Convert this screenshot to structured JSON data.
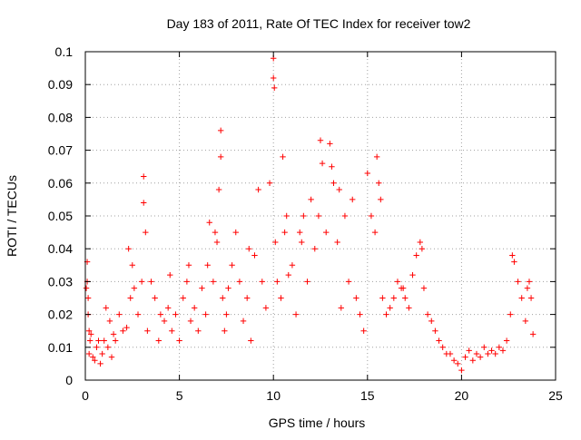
{
  "chart_data": {
    "type": "scatter",
    "title": "Day 183 of 2011, Rate Of TEC Index for receiver tow2",
    "xlabel": "GPS time / hours",
    "ylabel": "ROTI / TECUs",
    "xlim": [
      0,
      25
    ],
    "ylim": [
      0,
      0.1
    ],
    "x_ticks": [
      0,
      5,
      10,
      15,
      20,
      25
    ],
    "y_ticks": [
      0,
      0.01,
      0.02,
      0.03,
      0.04,
      0.05,
      0.06,
      0.07,
      0.08,
      0.09,
      0.1
    ],
    "x_tick_labels": [
      "0",
      "5",
      "10",
      "15",
      "20",
      "25"
    ],
    "y_tick_labels": [
      "0",
      "0.01",
      "0.02",
      "0.03",
      "0.04",
      "0.05",
      "0.06",
      "0.07",
      "0.08",
      "0.09",
      "0.1"
    ],
    "grid": true,
    "marker": "+",
    "color": "#ff0000",
    "series": [
      {
        "name": "ROTI",
        "x": [
          0.05,
          0.1,
          0.15,
          0.2,
          0.25,
          0.1,
          0.15,
          0.2,
          0.3,
          0.4,
          0.5,
          0.6,
          0.7,
          0.8,
          0.9,
          1.0,
          1.1,
          1.2,
          1.3,
          1.4,
          1.5,
          1.6,
          1.8,
          2.0,
          2.2,
          2.4,
          2.5,
          2.6,
          2.8,
          3.0,
          3.1,
          3.1,
          3.2,
          3.3,
          3.5,
          3.7,
          3.9,
          4.0,
          4.2,
          4.4,
          4.6,
          4.8,
          5.0,
          5.2,
          5.4,
          5.5,
          5.6,
          5.8,
          6.0,
          6.2,
          6.4,
          6.5,
          6.6,
          6.8,
          7.0,
          7.1,
          7.2,
          7.2,
          7.3,
          7.4,
          7.5,
          7.6,
          7.8,
          8.0,
          8.2,
          8.4,
          8.6,
          8.8,
          9.0,
          9.2,
          9.4,
          9.6,
          9.8,
          10.0,
          10.0,
          10.05,
          10.1,
          10.2,
          10.4,
          10.5,
          10.6,
          10.7,
          10.8,
          11.0,
          11.2,
          11.4,
          11.6,
          11.8,
          12.0,
          12.2,
          12.4,
          12.5,
          12.6,
          12.8,
          13.0,
          13.1,
          13.2,
          13.4,
          13.6,
          13.8,
          14.0,
          14.2,
          14.4,
          14.6,
          14.8,
          15.0,
          15.2,
          15.4,
          15.5,
          15.6,
          15.7,
          15.8,
          16.0,
          16.2,
          16.4,
          16.6,
          16.8,
          17.0,
          17.2,
          17.4,
          17.6,
          17.8,
          17.9,
          18.0,
          18.2,
          18.4,
          18.6,
          18.8,
          19.0,
          19.2,
          19.4,
          19.6,
          19.8,
          20.0,
          20.2,
          20.4,
          20.6,
          20.8,
          21.0,
          21.2,
          21.4,
          21.6,
          21.8,
          22.0,
          22.2,
          22.4,
          22.6,
          22.7,
          22.8,
          23.0,
          23.2,
          23.4,
          23.5,
          23.6,
          23.7,
          23.8,
          2.3,
          4.5,
          6.9,
          8.7,
          11.5,
          13.5,
          16.9
        ],
        "y": [
          0.028,
          0.03,
          0.025,
          0.015,
          0.012,
          0.036,
          0.02,
          0.008,
          0.014,
          0.007,
          0.006,
          0.01,
          0.012,
          0.005,
          0.008,
          0.012,
          0.022,
          0.01,
          0.018,
          0.007,
          0.014,
          0.012,
          0.02,
          0.015,
          0.016,
          0.025,
          0.035,
          0.028,
          0.02,
          0.03,
          0.062,
          0.054,
          0.045,
          0.015,
          0.03,
          0.025,
          0.012,
          0.02,
          0.018,
          0.022,
          0.015,
          0.02,
          0.012,
          0.025,
          0.03,
          0.035,
          0.018,
          0.022,
          0.015,
          0.028,
          0.02,
          0.035,
          0.048,
          0.03,
          0.042,
          0.058,
          0.076,
          0.068,
          0.025,
          0.015,
          0.02,
          0.028,
          0.035,
          0.045,
          0.03,
          0.018,
          0.025,
          0.012,
          0.038,
          0.058,
          0.03,
          0.022,
          0.06,
          0.098,
          0.092,
          0.089,
          0.042,
          0.03,
          0.025,
          0.068,
          0.045,
          0.05,
          0.032,
          0.035,
          0.02,
          0.045,
          0.05,
          0.03,
          0.055,
          0.04,
          0.05,
          0.073,
          0.066,
          0.045,
          0.072,
          0.065,
          0.06,
          0.042,
          0.022,
          0.05,
          0.03,
          0.055,
          0.025,
          0.02,
          0.015,
          0.063,
          0.05,
          0.045,
          0.068,
          0.06,
          0.055,
          0.025,
          0.02,
          0.022,
          0.025,
          0.03,
          0.028,
          0.025,
          0.022,
          0.032,
          0.038,
          0.042,
          0.04,
          0.028,
          0.02,
          0.018,
          0.015,
          0.012,
          0.01,
          0.008,
          0.008,
          0.006,
          0.005,
          0.003,
          0.007,
          0.009,
          0.006,
          0.008,
          0.007,
          0.01,
          0.008,
          0.009,
          0.008,
          0.01,
          0.009,
          0.012,
          0.02,
          0.038,
          0.036,
          0.03,
          0.025,
          0.018,
          0.028,
          0.03,
          0.025,
          0.014,
          0.04,
          0.032,
          0.045,
          0.04,
          0.042,
          0.058,
          0.028
        ]
      }
    ]
  }
}
